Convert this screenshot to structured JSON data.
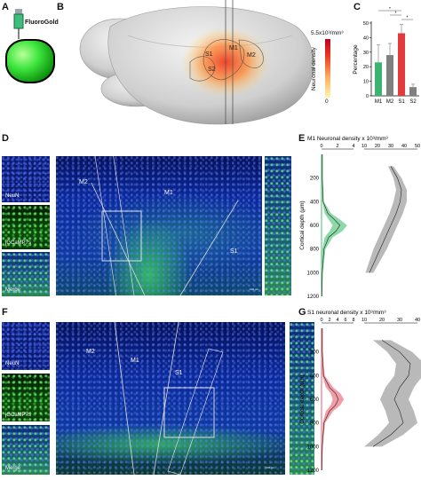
{
  "panels": {
    "A": {
      "letter": "A",
      "tracer_label": "FluoroGold"
    },
    "B": {
      "letter": "B",
      "regions": [
        "S1",
        "M1",
        "M2",
        "S2"
      ],
      "colorbar": {
        "max_label": "5.5x10³/mm³",
        "min_label": "0",
        "title": "Neuronal density",
        "colors": [
          "#fff7b0",
          "#fdae61",
          "#f03b20",
          "#bd0026"
        ]
      }
    },
    "C": {
      "letter": "C",
      "chart_data": {
        "type": "bar",
        "ylabel": "Percentage",
        "ylim": [
          0,
          50
        ],
        "yticks": [
          0,
          10,
          20,
          30,
          40,
          50
        ],
        "categories": [
          "M1",
          "M2",
          "S1",
          "S2"
        ],
        "values": [
          23,
          28,
          43,
          6
        ],
        "errors": [
          12,
          8,
          6,
          2
        ],
        "colors": [
          "#3cb371",
          "#808080",
          "#e33b3b",
          "#808080"
        ],
        "significance": [
          "*",
          "*",
          "*"
        ]
      }
    },
    "D": {
      "letter": "D",
      "tiles": [
        "NeuN",
        "jGCaMP7s",
        "Merge"
      ],
      "regions": [
        "M2",
        "M1",
        "S1"
      ],
      "scale_text": "100 μm"
    },
    "E": {
      "letter": "E",
      "chart_data": {
        "type": "area",
        "title": "M1 Neuronal density x 10³/mm³",
        "ylabel": "Cortical depth (μm)",
        "y_ticks": [
          200,
          400,
          600,
          800,
          1000,
          1200
        ],
        "ylim": [
          0,
          1200
        ],
        "left_axis_ticks": [
          0,
          2,
          4
        ],
        "right_axis_ticks": [
          10,
          20,
          30,
          40,
          50
        ],
        "series": [
          {
            "name": "",
            "color": "#2eb85c",
            "depth": [
              0,
              200,
              400,
              500,
              550,
              600,
              650,
              700,
              800,
              1000,
              1200
            ],
            "mean": [
              0.1,
              0.1,
              0.2,
              0.8,
              1.6,
              2.3,
              1.8,
              0.9,
              0.3,
              0.1,
              0.05
            ],
            "sd": [
              0.05,
              0.05,
              0.1,
              0.4,
              0.7,
              0.9,
              0.8,
              0.5,
              0.2,
              0.05,
              0.02
            ]
          },
          {
            "name": "",
            "color": "#808080",
            "depth": [
              100,
              200,
              300,
              400,
              500,
              600,
              700,
              800,
              900,
              1000
            ],
            "mean": [
              30,
              35,
              38,
              37,
              34,
              30,
              26,
              22,
              18,
              14
            ],
            "sd": [
              2,
              3,
              4,
              5,
              5,
              5,
              5,
              5,
              4,
              3
            ]
          }
        ]
      }
    },
    "F": {
      "letter": "F",
      "tiles": [
        "NeuN",
        "jGCaMP7s",
        "Merge"
      ],
      "regions": [
        "M2",
        "M1",
        "S1"
      ],
      "scale_text": "100 μm"
    },
    "G": {
      "letter": "G",
      "chart_data": {
        "type": "area",
        "title": "S1 neuronal density x 10³/mm³",
        "ylabel": "Cortical depth (μm)",
        "y_ticks": [
          200,
          400,
          600,
          800,
          1000,
          1200
        ],
        "ylim": [
          0,
          1200
        ],
        "left_axis_ticks": [
          0,
          2,
          4,
          6,
          8
        ],
        "right_axis_ticks": [
          10,
          20,
          30,
          40
        ],
        "series": [
          {
            "name": "",
            "color": "#e84a5f",
            "depth": [
              0,
              200,
              400,
              500,
              550,
              600,
              650,
              700,
              800,
              1000,
              1200
            ],
            "mean": [
              0.2,
              0.2,
              0.5,
              2.0,
              3.5,
              4.2,
              3.5,
              2.0,
              0.6,
              0.2,
              0.1
            ],
            "sd": [
              0.1,
              0.1,
              0.3,
              0.9,
              1.2,
              1.4,
              1.2,
              0.9,
              0.3,
              0.1,
              0.05
            ]
          },
          {
            "name": "",
            "color": "#808080",
            "depth": [
              100,
              200,
              300,
              400,
              500,
              600,
              700,
              800,
              900,
              1000
            ],
            "mean": [
              20,
              30,
              36,
              35,
              30,
              27,
              30,
              32,
              25,
              15
            ],
            "sd": [
              5,
              7,
              8,
              8,
              8,
              8,
              8,
              8,
              7,
              5
            ]
          }
        ]
      }
    }
  }
}
